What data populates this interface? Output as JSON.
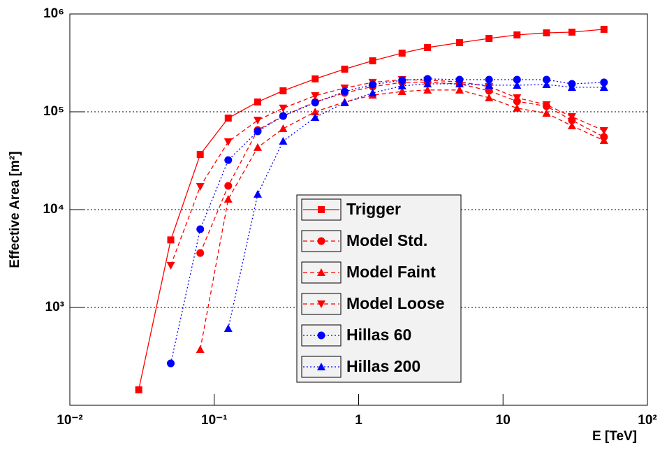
{
  "chart_data": {
    "type": "line",
    "xlabel": "E [TeV]",
    "ylabel": "Effective Area [m²]",
    "xscale": "log",
    "yscale": "log",
    "xlim": [
      0.01,
      100
    ],
    "ylim": [
      100,
      1000000
    ],
    "xticks": [
      {
        "value": 0.01,
        "label": "10⁻²"
      },
      {
        "value": 0.1,
        "label": "10⁻¹"
      },
      1,
      10,
      {
        "value": 100,
        "label": "10²"
      }
    ],
    "yticks": [
      {
        "value": 1000,
        "label": "10³"
      },
      {
        "value": 10000,
        "label": "10⁴"
      },
      {
        "value": 100000,
        "label": "10⁵"
      },
      {
        "value": 1000000,
        "label": "10⁶"
      }
    ],
    "grid": true,
    "x": [
      0.03,
      0.05,
      0.08,
      0.125,
      0.2,
      0.3,
      0.5,
      0.8,
      1.25,
      2,
      3,
      5,
      8,
      12.5,
      20,
      30,
      50
    ],
    "series": [
      {
        "name": "Trigger",
        "color": "#ff0000",
        "marker": "square",
        "line_style": "solid",
        "values": [
          144,
          4900,
          36600,
          86300,
          126000,
          164000,
          217000,
          273000,
          332000,
          398000,
          454000,
          509000,
          562000,
          611000,
          641000,
          652000,
          697000
        ]
      },
      {
        "name": "Model Std.",
        "color": "#ff0000",
        "marker": "circle",
        "line_style": "dashed",
        "values": [
          null,
          null,
          3600,
          17500,
          65200,
          90600,
          126000,
          156000,
          181000,
          200000,
          200000,
          193000,
          164000,
          128000,
          114000,
          82000,
          55300
        ]
      },
      {
        "name": "Model Faint",
        "color": "#ff0000",
        "marker": "triangle-up",
        "line_style": "dashed",
        "values": [
          null,
          null,
          373,
          12800,
          43300,
          67400,
          100000,
          126000,
          148000,
          161000,
          167000,
          167000,
          139000,
          109000,
          96800,
          71900,
          50900
        ]
      },
      {
        "name": "Model Loose",
        "color": "#ff0000",
        "marker": "triangle-down",
        "line_style": "dashed",
        "values": [
          null,
          2690,
          17200,
          49300,
          82000,
          109000,
          146000,
          175000,
          200000,
          213000,
          210000,
          203000,
          181000,
          139000,
          118000,
          89100,
          64100
        ]
      },
      {
        "name": "Hillas 60",
        "color": "#0000ff",
        "marker": "circle",
        "line_style": "dotted",
        "values": [
          null,
          268,
          6310,
          32100,
          63100,
          90600,
          124000,
          161000,
          190000,
          210000,
          217000,
          213000,
          213000,
          213000,
          213000,
          193000,
          200000
        ]
      },
      {
        "name": "Hillas 200",
        "color": "#0000ff",
        "marker": "triangle-up",
        "line_style": "dotted",
        "values": [
          null,
          null,
          null,
          611,
          14400,
          50100,
          87700,
          124000,
          156000,
          184000,
          193000,
          193000,
          187000,
          187000,
          190000,
          178000,
          178000
        ]
      }
    ]
  }
}
